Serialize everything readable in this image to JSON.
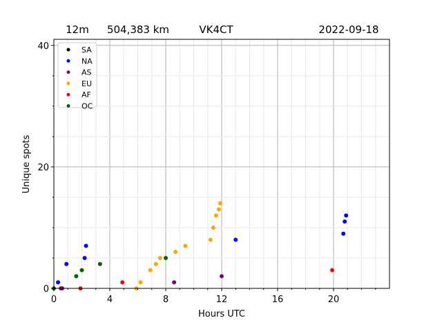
{
  "chart_data": {
    "type": "scatter",
    "title_parts": [
      "12m",
      "504,383 km",
      "VK4CT",
      "2022-09-18"
    ],
    "xlabel": "Hours UTC",
    "ylabel": "Unique spots",
    "xlim": [
      0,
      24
    ],
    "ylim": [
      0,
      41
    ],
    "xticks": [
      0,
      4,
      8,
      12,
      16,
      20
    ],
    "yticks": [
      0,
      20,
      40
    ],
    "grid": true,
    "legend_placement": "top-left",
    "series": [
      {
        "name": "SA",
        "color": "#000000",
        "points": []
      },
      {
        "name": "NA",
        "color": "#0000ff",
        "points": [
          [
            0.3,
            1
          ],
          [
            0.9,
            4
          ],
          [
            2.2,
            5
          ],
          [
            2.3,
            7
          ],
          [
            13.0,
            8
          ],
          [
            20.7,
            9
          ],
          [
            20.8,
            11
          ],
          [
            20.9,
            12
          ]
        ]
      },
      {
        "name": "AS",
        "color": "#800080",
        "points": [
          [
            0.5,
            0
          ],
          [
            0.6,
            0
          ],
          [
            8.6,
            1
          ],
          [
            12.0,
            2
          ]
        ]
      },
      {
        "name": "EU",
        "color": "#ffa500",
        "points": [
          [
            5.9,
            0
          ],
          [
            6.2,
            1
          ],
          [
            6.9,
            3
          ],
          [
            7.3,
            4
          ],
          [
            7.6,
            5
          ],
          [
            8.7,
            6
          ],
          [
            9.4,
            7
          ],
          [
            11.2,
            8
          ],
          [
            11.4,
            10
          ],
          [
            11.6,
            12
          ],
          [
            11.8,
            13
          ],
          [
            11.9,
            14
          ]
        ]
      },
      {
        "name": "AF",
        "color": "#ff0000",
        "points": [
          [
            1.9,
            0
          ],
          [
            4.9,
            1
          ],
          [
            19.9,
            3
          ]
        ]
      },
      {
        "name": "OC",
        "color": "#006400",
        "points": [
          [
            0.0,
            0
          ],
          [
            1.6,
            2
          ],
          [
            2.0,
            3
          ],
          [
            3.3,
            4
          ],
          [
            8.0,
            5
          ]
        ]
      }
    ]
  }
}
